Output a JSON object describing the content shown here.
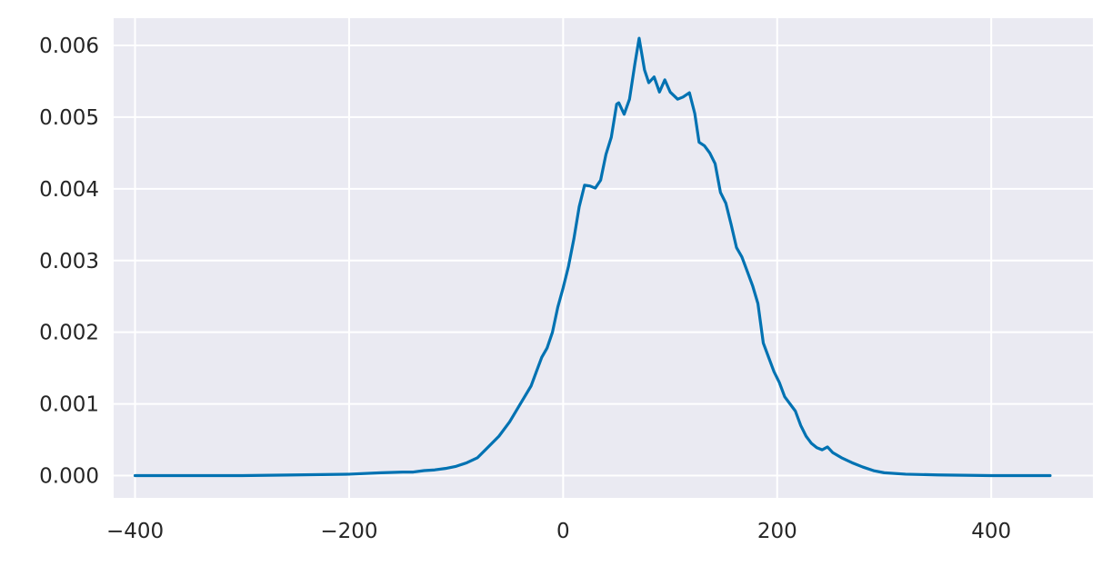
{
  "chart_data": {
    "type": "line",
    "title": "",
    "xlabel": "",
    "ylabel": "",
    "xlim": [
      -420,
      495
    ],
    "ylim": [
      -0.00031,
      0.00638
    ],
    "x_ticks": [
      {
        "value": -400,
        "label": "−400"
      },
      {
        "value": -200,
        "label": "−200"
      },
      {
        "value": 0,
        "label": "0"
      },
      {
        "value": 200,
        "label": "200"
      },
      {
        "value": 400,
        "label": "400"
      }
    ],
    "y_ticks": [
      {
        "value": 0.0,
        "label": "0.000"
      },
      {
        "value": 0.001,
        "label": "0.001"
      },
      {
        "value": 0.002,
        "label": "0.002"
      },
      {
        "value": 0.003,
        "label": "0.003"
      },
      {
        "value": 0.004,
        "label": "0.004"
      },
      {
        "value": 0.005,
        "label": "0.005"
      },
      {
        "value": 0.006,
        "label": "0.006"
      }
    ],
    "grid": true,
    "colors": {
      "background": "#eaeaf2",
      "grid": "#ffffff",
      "line": "#0072b2"
    },
    "series": [
      {
        "points": [
          [
            -400,
            0.0
          ],
          [
            -300,
            0.0
          ],
          [
            -250,
            1e-05
          ],
          [
            -200,
            2e-05
          ],
          [
            -170,
            4e-05
          ],
          [
            -150,
            5e-05
          ],
          [
            -140,
            5e-05
          ],
          [
            -130,
            7e-05
          ],
          [
            -120,
            8e-05
          ],
          [
            -110,
            0.0001
          ],
          [
            -100,
            0.00013
          ],
          [
            -90,
            0.00018
          ],
          [
            -80,
            0.00025
          ],
          [
            -70,
            0.0004
          ],
          [
            -60,
            0.00055
          ],
          [
            -50,
            0.00075
          ],
          [
            -40,
            0.001
          ],
          [
            -30,
            0.00125
          ],
          [
            -25,
            0.00145
          ],
          [
            -20,
            0.00165
          ],
          [
            -15,
            0.00178
          ],
          [
            -10,
            0.002
          ],
          [
            -5,
            0.00235
          ],
          [
            0,
            0.00262
          ],
          [
            5,
            0.00292
          ],
          [
            10,
            0.0033
          ],
          [
            15,
            0.00375
          ],
          [
            20,
            0.00405
          ],
          [
            25,
            0.00404
          ],
          [
            30,
            0.00401
          ],
          [
            35,
            0.00412
          ],
          [
            40,
            0.00448
          ],
          [
            45,
            0.00472
          ],
          [
            50,
            0.00518
          ],
          [
            52,
            0.0052
          ],
          [
            57,
            0.00504
          ],
          [
            62,
            0.00525
          ],
          [
            67,
            0.00574
          ],
          [
            71,
            0.0061
          ],
          [
            76,
            0.00566
          ],
          [
            80,
            0.00548
          ],
          [
            85,
            0.00556
          ],
          [
            90,
            0.00535
          ],
          [
            95,
            0.00552
          ],
          [
            100,
            0.00535
          ],
          [
            107,
            0.00525
          ],
          [
            112,
            0.00528
          ],
          [
            118,
            0.00534
          ],
          [
            123,
            0.00505
          ],
          [
            127,
            0.00465
          ],
          [
            132,
            0.0046
          ],
          [
            137,
            0.0045
          ],
          [
            142,
            0.00435
          ],
          [
            147,
            0.00395
          ],
          [
            152,
            0.0038
          ],
          [
            157,
            0.0035
          ],
          [
            162,
            0.00318
          ],
          [
            167,
            0.00305
          ],
          [
            172,
            0.00285
          ],
          [
            177,
            0.00265
          ],
          [
            182,
            0.0024
          ],
          [
            187,
            0.00185
          ],
          [
            192,
            0.00165
          ],
          [
            197,
            0.00145
          ],
          [
            202,
            0.0013
          ],
          [
            207,
            0.0011
          ],
          [
            212,
            0.001
          ],
          [
            217,
            0.0009
          ],
          [
            222,
            0.0007
          ],
          [
            227,
            0.00055
          ],
          [
            232,
            0.00045
          ],
          [
            237,
            0.00039
          ],
          [
            242,
            0.00036
          ],
          [
            247,
            0.0004
          ],
          [
            252,
            0.00032
          ],
          [
            260,
            0.00025
          ],
          [
            270,
            0.00018
          ],
          [
            280,
            0.00012
          ],
          [
            290,
            7e-05
          ],
          [
            300,
            4e-05
          ],
          [
            320,
            2e-05
          ],
          [
            350,
            1e-05
          ],
          [
            400,
            0.0
          ],
          [
            455,
            0.0
          ]
        ]
      }
    ]
  }
}
